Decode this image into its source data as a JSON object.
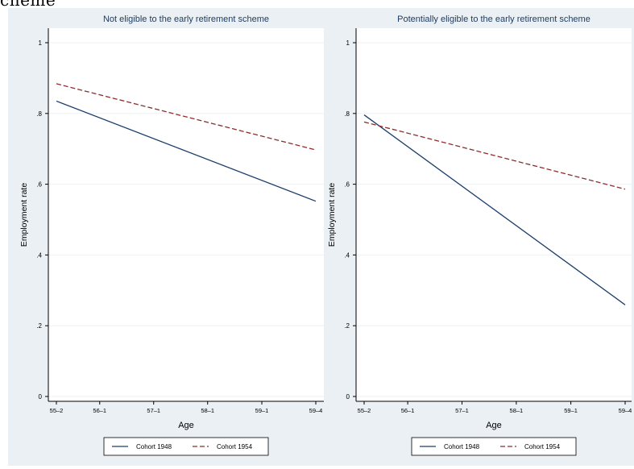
{
  "cropped_caption": "cheme",
  "chart_data": [
    {
      "type": "line",
      "title": "Not eligible to the early retirement scheme",
      "xlabel": "Age",
      "ylabel": "Employment rate",
      "x_ticks": [
        "55–2",
        "56–1",
        "57–1",
        "58–1",
        "59–1",
        "59–4"
      ],
      "y_ticks": [
        "0",
        ".2",
        ".4",
        ".6",
        ".8",
        "1"
      ],
      "ylim": [
        0,
        1
      ],
      "grid": true,
      "legend_position": "bottom",
      "series": [
        {
          "name": "Cohort 1948",
          "style": "solid",
          "color": "#1b3d6b",
          "x": [
            "55–2",
            "59–4"
          ],
          "y": [
            0.835,
            0.552
          ]
        },
        {
          "name": "Cohort 1954",
          "style": "dashed",
          "color": "#8b2d2d",
          "x": [
            "55–2",
            "59–4"
          ],
          "y": [
            0.884,
            0.697
          ]
        }
      ]
    },
    {
      "type": "line",
      "title": "Potentially eligible to the early retirement scheme",
      "xlabel": "Age",
      "ylabel": "Employment rate",
      "x_ticks": [
        "55–2",
        "56–1",
        "57–1",
        "58–1",
        "59–1",
        "59–4"
      ],
      "y_ticks": [
        "0",
        ".2",
        ".4",
        ".6",
        ".8",
        "1"
      ],
      "ylim": [
        0,
        1
      ],
      "grid": true,
      "legend_position": "bottom",
      "series": [
        {
          "name": "Cohort 1948",
          "style": "solid",
          "color": "#1b3d6b",
          "x": [
            "55–2",
            "59–4"
          ],
          "y": [
            0.796,
            0.259
          ]
        },
        {
          "name": "Cohort 1954",
          "style": "dashed",
          "color": "#8b2d2d",
          "x": [
            "55–2",
            "59–4"
          ],
          "y": [
            0.776,
            0.586
          ]
        }
      ]
    }
  ]
}
